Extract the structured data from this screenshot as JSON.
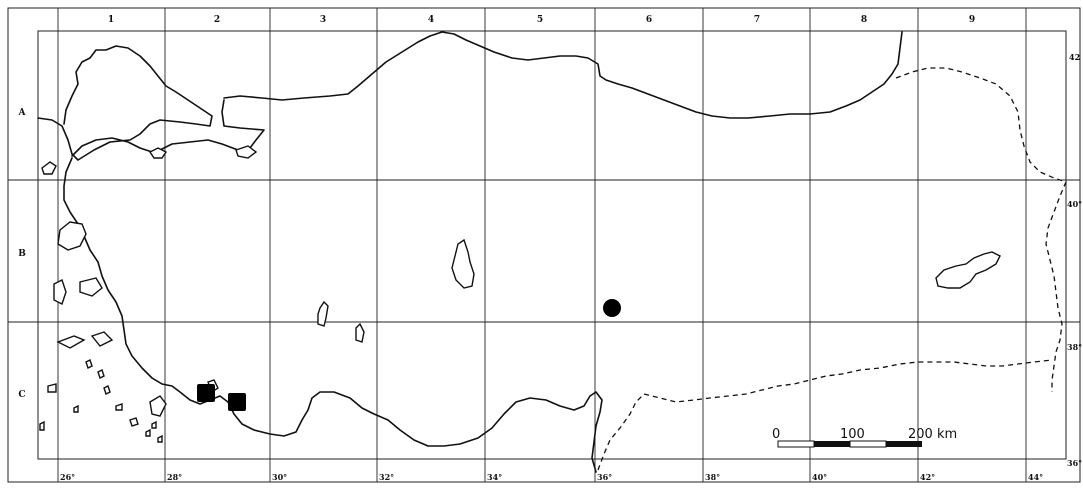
{
  "map": {
    "columns": [
      "1",
      "2",
      "3",
      "4",
      "5",
      "6",
      "7",
      "8",
      "9"
    ],
    "rows": [
      "A",
      "B",
      "C"
    ],
    "longitudes": [
      "26°",
      "28°",
      "30°",
      "32°",
      "34°",
      "36°",
      "38°",
      "40°",
      "42°",
      "44°"
    ],
    "latitudes": [
      "42",
      "40°",
      "38°",
      "36°"
    ],
    "scale_bar": {
      "labels": [
        "0",
        "100",
        "200 km"
      ]
    },
    "markers": [
      {
        "shape": "circle",
        "color": "#000000"
      },
      {
        "shape": "square",
        "color": "#000000"
      },
      {
        "shape": "square",
        "color": "#000000"
      }
    ]
  }
}
